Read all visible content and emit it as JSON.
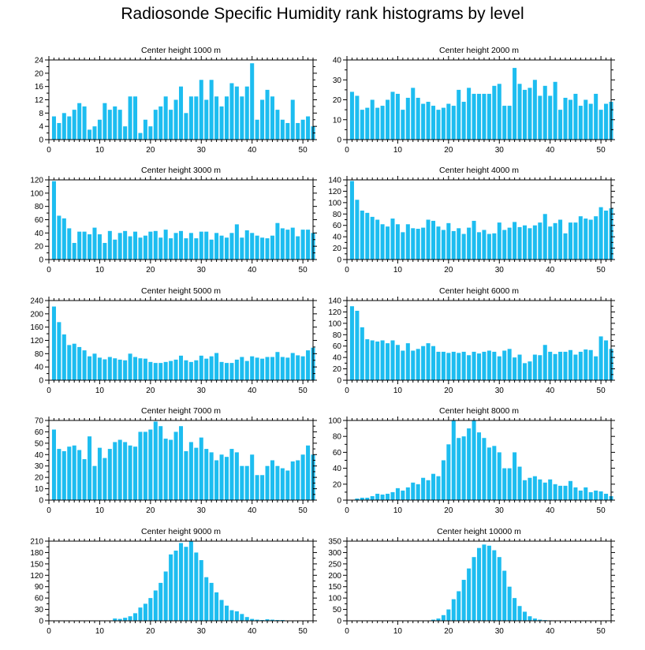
{
  "title": "Radiosonde Specific Humidity rank histograms by level",
  "colors": {
    "bar": "#1dbdf0",
    "axis": "#000000"
  },
  "chart_data": [
    {
      "type": "bar",
      "title": "Center height 1000 m",
      "xlim": [
        0,
        52
      ],
      "ylim": [
        0,
        24
      ],
      "xticks": [
        0,
        10,
        20,
        30,
        40,
        50
      ],
      "yticks": [
        0,
        4,
        8,
        12,
        16,
        20,
        24
      ],
      "values": [
        7,
        5,
        8,
        7,
        9,
        11,
        10,
        3,
        4,
        6,
        11,
        9,
        10,
        9,
        4,
        13,
        13,
        2,
        6,
        4,
        9,
        10,
        13,
        9,
        12,
        16,
        8,
        13,
        13,
        18,
        12,
        18,
        13,
        10,
        13,
        17,
        16,
        13,
        16,
        23,
        6,
        12,
        15,
        13,
        9,
        6,
        5,
        12,
        5,
        6,
        7,
        4
      ]
    },
    {
      "type": "bar",
      "title": "Center height 2000 m",
      "xlim": [
        0,
        52
      ],
      "ylim": [
        0,
        40
      ],
      "xticks": [
        0,
        10,
        20,
        30,
        40,
        50
      ],
      "yticks": [
        0,
        10,
        20,
        30,
        40
      ],
      "values": [
        24,
        22,
        15,
        16,
        20,
        16,
        17,
        20,
        24,
        23,
        15,
        21,
        26,
        21,
        18,
        19,
        17,
        15,
        16,
        18,
        17,
        25,
        19,
        26,
        23,
        23,
        23,
        23,
        27,
        28,
        17,
        17,
        36,
        28,
        25,
        26,
        30,
        22,
        27,
        22,
        29,
        15,
        21,
        20,
        23,
        17,
        20,
        18,
        23,
        15,
        18,
        19
      ]
    },
    {
      "type": "bar",
      "title": "Center height 3000 m",
      "xlim": [
        0,
        52
      ],
      "ylim": [
        0,
        120
      ],
      "xticks": [
        0,
        10,
        20,
        30,
        40,
        50
      ],
      "yticks": [
        0,
        20,
        40,
        60,
        80,
        100,
        120
      ],
      "values": [
        118,
        66,
        62,
        47,
        25,
        42,
        42,
        38,
        48,
        38,
        25,
        43,
        30,
        40,
        43,
        35,
        42,
        33,
        36,
        42,
        43,
        33,
        45,
        32,
        40,
        43,
        32,
        40,
        32,
        42,
        42,
        30,
        40,
        36,
        33,
        40,
        53,
        33,
        44,
        40,
        36,
        33,
        32,
        36,
        55,
        47,
        45,
        48,
        35,
        45,
        45,
        40
      ]
    },
    {
      "type": "bar",
      "title": "Center height 4000 m",
      "xlim": [
        0,
        52
      ],
      "ylim": [
        0,
        140
      ],
      "xticks": [
        0,
        10,
        20,
        30,
        40,
        50
      ],
      "yticks": [
        0,
        20,
        40,
        60,
        80,
        100,
        120,
        140
      ],
      "values": [
        138,
        105,
        86,
        82,
        75,
        70,
        62,
        58,
        72,
        62,
        48,
        62,
        55,
        54,
        56,
        70,
        68,
        58,
        52,
        64,
        50,
        55,
        45,
        56,
        68,
        48,
        52,
        45,
        46,
        65,
        52,
        56,
        66,
        57,
        60,
        55,
        60,
        65,
        80,
        58,
        64,
        70,
        46,
        65,
        65,
        76,
        72,
        70,
        76,
        92,
        86,
        90
      ]
    },
    {
      "type": "bar",
      "title": "Center height 5000 m",
      "xlim": [
        0,
        52
      ],
      "ylim": [
        0,
        240
      ],
      "xticks": [
        0,
        10,
        20,
        30,
        40,
        50
      ],
      "yticks": [
        0,
        40,
        80,
        120,
        160,
        200,
        240
      ],
      "values": [
        222,
        175,
        138,
        106,
        110,
        100,
        90,
        72,
        80,
        68,
        63,
        70,
        66,
        62,
        60,
        80,
        70,
        66,
        65,
        55,
        52,
        52,
        55,
        58,
        62,
        74,
        60,
        55,
        60,
        74,
        65,
        72,
        82,
        55,
        52,
        52,
        62,
        70,
        58,
        72,
        68,
        65,
        70,
        70,
        85,
        70,
        68,
        82,
        75,
        72,
        90,
        98
      ]
    },
    {
      "type": "bar",
      "title": "Center height 6000 m",
      "xlim": [
        0,
        52
      ],
      "ylim": [
        0,
        140
      ],
      "xticks": [
        0,
        10,
        20,
        30,
        40,
        50
      ],
      "yticks": [
        0,
        20,
        40,
        60,
        80,
        100,
        120,
        140
      ],
      "values": [
        130,
        122,
        93,
        72,
        70,
        68,
        70,
        65,
        70,
        62,
        52,
        65,
        52,
        55,
        60,
        65,
        60,
        50,
        50,
        48,
        50,
        48,
        50,
        44,
        50,
        47,
        50,
        52,
        50,
        42,
        52,
        55,
        40,
        45,
        30,
        33,
        45,
        44,
        62,
        50,
        46,
        50,
        50,
        53,
        45,
        50,
        54,
        53,
        42,
        77,
        70,
        55
      ]
    },
    {
      "type": "bar",
      "title": "Center height 7000 m",
      "xlim": [
        0,
        52
      ],
      "ylim": [
        0,
        70
      ],
      "xticks": [
        0,
        10,
        20,
        30,
        40,
        50
      ],
      "yticks": [
        0,
        10,
        20,
        30,
        40,
        50,
        60,
        70
      ],
      "values": [
        62,
        45,
        43,
        47,
        48,
        44,
        36,
        56,
        30,
        46,
        37,
        45,
        51,
        53,
        51,
        48,
        47,
        60,
        60,
        62,
        69,
        65,
        54,
        53,
        60,
        65,
        43,
        51,
        46,
        55,
        45,
        42,
        35,
        40,
        38,
        45,
        42,
        30,
        30,
        40,
        22,
        22,
        30,
        35,
        30,
        28,
        26,
        34,
        35,
        40,
        48,
        40
      ]
    },
    {
      "type": "bar",
      "title": "Center height 8000 m",
      "xlim": [
        0,
        52
      ],
      "ylim": [
        0,
        100
      ],
      "xticks": [
        0,
        10,
        20,
        30,
        40,
        50
      ],
      "yticks": [
        0,
        20,
        40,
        60,
        80,
        100
      ],
      "values": [
        0,
        2,
        3,
        3,
        5,
        8,
        7,
        8,
        10,
        15,
        12,
        16,
        22,
        20,
        28,
        25,
        33,
        30,
        50,
        70,
        100,
        78,
        80,
        90,
        100,
        85,
        78,
        66,
        68,
        60,
        40,
        40,
        60,
        42,
        25,
        28,
        30,
        26,
        22,
        26,
        20,
        18,
        18,
        24,
        16,
        12,
        16,
        10,
        12,
        11,
        8,
        5
      ]
    },
    {
      "type": "bar",
      "title": "Center height 9000 m",
      "xlim": [
        0,
        52
      ],
      "ylim": [
        0,
        210
      ],
      "xticks": [
        0,
        10,
        20,
        30,
        40,
        50
      ],
      "yticks": [
        0,
        30,
        60,
        90,
        120,
        150,
        180,
        210
      ],
      "values": [
        0,
        0,
        0,
        0,
        0,
        0,
        0,
        0,
        0,
        0,
        0,
        0,
        6,
        5,
        8,
        12,
        20,
        35,
        45,
        60,
        80,
        100,
        130,
        175,
        185,
        205,
        195,
        210,
        180,
        160,
        115,
        100,
        75,
        55,
        40,
        28,
        25,
        18,
        10,
        5,
        3,
        2,
        4,
        3,
        2,
        2,
        1,
        1,
        0,
        1,
        0,
        0
      ]
    },
    {
      "type": "bar",
      "title": "Center height 10000 m",
      "xlim": [
        0,
        52
      ],
      "ylim": [
        0,
        350
      ],
      "xticks": [
        0,
        10,
        20,
        30,
        40,
        50
      ],
      "yticks": [
        0,
        50,
        100,
        150,
        200,
        250,
        300,
        350
      ],
      "values": [
        0,
        0,
        0,
        0,
        0,
        0,
        0,
        0,
        0,
        0,
        0,
        0,
        0,
        0,
        0,
        0,
        5,
        10,
        25,
        50,
        95,
        130,
        180,
        230,
        280,
        320,
        335,
        330,
        310,
        280,
        220,
        150,
        100,
        65,
        40,
        20,
        10,
        5,
        3,
        2,
        1,
        1,
        1,
        0,
        1,
        0,
        0,
        0,
        0,
        0,
        0,
        0
      ]
    }
  ]
}
